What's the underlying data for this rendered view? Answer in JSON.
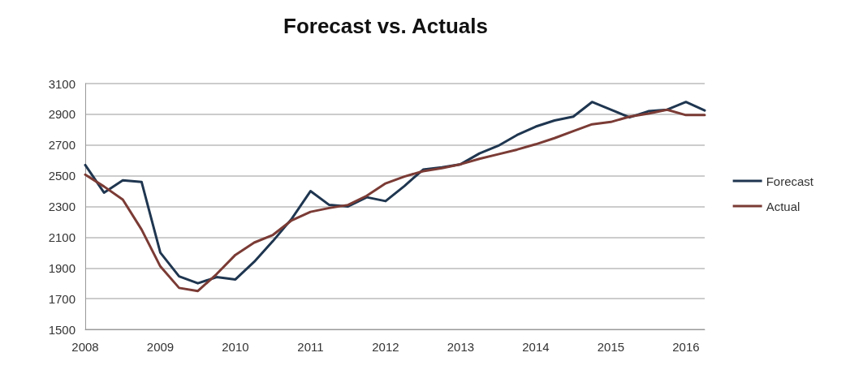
{
  "chart_data": {
    "type": "line",
    "title": "Forecast vs. Actuals",
    "categories": [
      "2008",
      null,
      null,
      null,
      "2009",
      null,
      null,
      null,
      "2010",
      null,
      null,
      null,
      "2011",
      null,
      null,
      null,
      "2012",
      null,
      null,
      null,
      "2013",
      null,
      null,
      null,
      "2014",
      null,
      null,
      null,
      "2015",
      null,
      null,
      null,
      "2016",
      null
    ],
    "series": [
      {
        "name": "Forecast",
        "color": "#1f3650",
        "values": [
          2570,
          2390,
          2470,
          2460,
          2000,
          1845,
          1800,
          1840,
          1825,
          1940,
          2075,
          2220,
          2400,
          2310,
          2300,
          2360,
          2335,
          2433,
          2540,
          2555,
          2575,
          2645,
          2695,
          2765,
          2820,
          2860,
          2885,
          2980,
          2930,
          2880,
          2920,
          2930,
          2980,
          2925
        ]
      },
      {
        "name": "Actual",
        "color": "#7b3b35",
        "values": [
          2507,
          2430,
          2345,
          2150,
          1910,
          1770,
          1750,
          1860,
          1985,
          2065,
          2115,
          2210,
          2265,
          2290,
          2310,
          2370,
          2450,
          2495,
          2530,
          2550,
          2575,
          2610,
          2640,
          2670,
          2705,
          2745,
          2790,
          2835,
          2850,
          2885,
          2905,
          2930,
          2895,
          2895
        ]
      }
    ],
    "ylim": [
      1500,
      3100
    ],
    "yticks": [
      1500,
      1700,
      1900,
      2100,
      2300,
      2500,
      2700,
      2900,
      3100
    ],
    "grid": "y",
    "legend": "right",
    "marker": "none",
    "line_style": "solid"
  }
}
